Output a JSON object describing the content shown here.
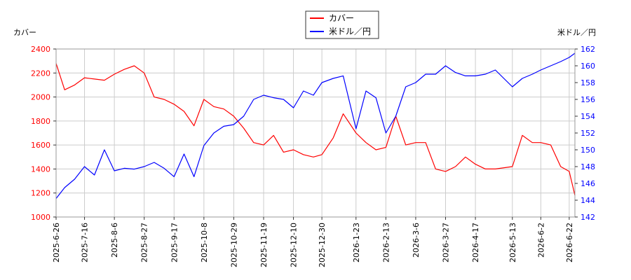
{
  "chart_data": {
    "type": "line",
    "legend_position": "top-center",
    "grid": true,
    "left_axis": {
      "label": "カバー",
      "ylim": [
        1000,
        2400
      ],
      "ticks": [
        1000,
        1200,
        1400,
        1600,
        1800,
        2000,
        2200,
        2400
      ],
      "color": "#ff0000"
    },
    "right_axis": {
      "label": "米ドル／円",
      "ylim": [
        142,
        162
      ],
      "ticks": [
        142,
        144,
        146,
        148,
        150,
        152,
        154,
        156,
        158,
        160,
        162
      ],
      "color": "#0000ff"
    },
    "x_ticks": [
      "2025-6-26",
      "2025-7-16",
      "2025-8-6",
      "2025-8-27",
      "2025-9-17",
      "2025-10-8",
      "2025-10-29",
      "2025-11-19",
      "2025-12-10",
      "2025-12-30",
      "2026-1-23",
      "2026-2-13",
      "2026-3-6",
      "2026-3-27",
      "2026-4-17",
      "2026-5-13",
      "2026-6-2",
      "2026-6-22"
    ],
    "series": [
      {
        "name": "カバー",
        "axis": "left",
        "color": "#ff0000",
        "x": [
          "2025-6-26",
          "2025-7-2",
          "2025-7-9",
          "2025-7-16",
          "2025-7-23",
          "2025-7-30",
          "2025-8-6",
          "2025-8-13",
          "2025-8-20",
          "2025-8-27",
          "2025-9-3",
          "2025-9-10",
          "2025-9-17",
          "2025-9-24",
          "2025-10-1",
          "2025-10-8",
          "2025-10-15",
          "2025-10-22",
          "2025-10-29",
          "2025-11-5",
          "2025-11-12",
          "2025-11-19",
          "2025-11-26",
          "2025-12-3",
          "2025-12-10",
          "2025-12-17",
          "2025-12-24",
          "2025-12-30",
          "2026-1-7",
          "2026-1-14",
          "2026-1-23",
          "2026-1-30",
          "2026-2-6",
          "2026-2-13",
          "2026-2-20",
          "2026-2-27",
          "2026-3-6",
          "2026-3-13",
          "2026-3-20",
          "2026-3-27",
          "2026-4-3",
          "2026-4-10",
          "2026-4-17",
          "2026-4-24",
          "2026-5-1",
          "2026-5-13",
          "2026-5-20",
          "2026-5-27",
          "2026-6-2",
          "2026-6-9",
          "2026-6-16",
          "2026-6-22",
          "2026-6-26"
        ],
        "values": [
          2280,
          2060,
          2100,
          2160,
          2150,
          2140,
          2190,
          2230,
          2260,
          2200,
          2000,
          1980,
          1940,
          1880,
          1760,
          1980,
          1920,
          1900,
          1840,
          1740,
          1620,
          1600,
          1680,
          1540,
          1560,
          1520,
          1500,
          1520,
          1660,
          1860,
          1700,
          1620,
          1560,
          1580,
          1840,
          1600,
          1620,
          1620,
          1400,
          1380,
          1420,
          1500,
          1440,
          1400,
          1400,
          1420,
          1680,
          1620,
          1620,
          1600,
          1420,
          1380,
          1180
        ]
      },
      {
        "name": "米ドル／円",
        "axis": "right",
        "color": "#0000ff",
        "x": [
          "2025-6-26",
          "2025-7-2",
          "2025-7-9",
          "2025-7-16",
          "2025-7-23",
          "2025-7-30",
          "2025-8-6",
          "2025-8-13",
          "2025-8-20",
          "2025-8-27",
          "2025-9-3",
          "2025-9-10",
          "2025-9-17",
          "2025-9-24",
          "2025-10-1",
          "2025-10-8",
          "2025-10-15",
          "2025-10-22",
          "2025-10-29",
          "2025-11-5",
          "2025-11-12",
          "2025-11-19",
          "2025-11-26",
          "2025-12-3",
          "2025-12-10",
          "2025-12-17",
          "2025-12-24",
          "2025-12-30",
          "2026-1-7",
          "2026-1-14",
          "2026-1-23",
          "2026-1-30",
          "2026-2-6",
          "2026-2-13",
          "2026-2-20",
          "2026-2-27",
          "2026-3-6",
          "2026-3-13",
          "2026-3-20",
          "2026-3-27",
          "2026-4-3",
          "2026-4-10",
          "2026-4-17",
          "2026-4-24",
          "2026-5-1",
          "2026-5-13",
          "2026-5-20",
          "2026-5-27",
          "2026-6-2",
          "2026-6-9",
          "2026-6-16",
          "2026-6-22",
          "2026-6-26"
        ],
        "values": [
          144.2,
          145.5,
          146.5,
          148.0,
          147.0,
          150.0,
          147.5,
          147.8,
          147.7,
          148.0,
          148.5,
          147.8,
          146.8,
          149.5,
          146.8,
          150.5,
          152.0,
          152.8,
          153.0,
          154.0,
          156.0,
          156.5,
          156.2,
          156.0,
          155.0,
          157.0,
          156.5,
          158.0,
          158.5,
          158.8,
          152.5,
          157.0,
          156.2,
          152.0,
          154.0,
          157.5,
          158.0,
          159.0,
          159.0,
          160.0,
          159.2,
          158.8,
          158.8,
          159.0,
          159.5,
          157.5,
          158.5,
          159.0,
          159.5,
          160.0,
          160.5,
          161.0,
          161.5
        ]
      }
    ]
  }
}
